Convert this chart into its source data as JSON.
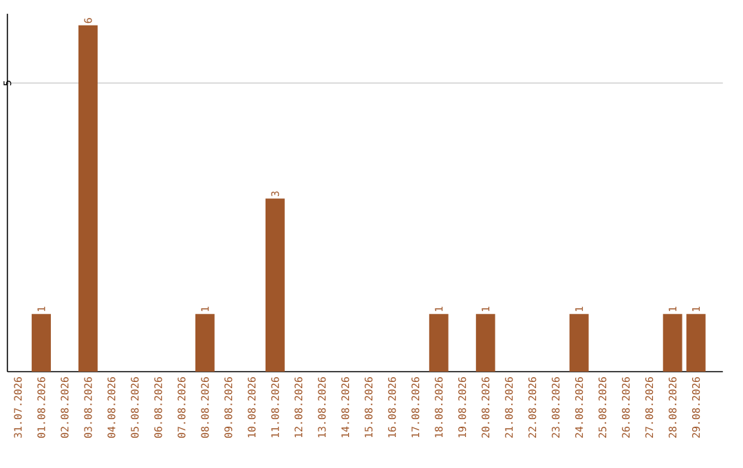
{
  "chart_data": {
    "type": "bar",
    "categories": [
      "31.07.2026",
      "01.08.2026",
      "02.08.2026",
      "03.08.2026",
      "04.08.2026",
      "05.08.2026",
      "06.08.2026",
      "07.08.2026",
      "08.08.2026",
      "09.08.2026",
      "10.08.2026",
      "11.08.2026",
      "12.08.2026",
      "13.08.2026",
      "14.08.2026",
      "15.08.2026",
      "16.08.2026",
      "17.08.2026",
      "18.08.2026",
      "19.08.2026",
      "20.08.2026",
      "21.08.2026",
      "22.08.2026",
      "23.08.2026",
      "24.08.2026",
      "25.08.2026",
      "26.08.2026",
      "27.08.2026",
      "28.08.2026",
      "29.08.2026"
    ],
    "values": [
      0,
      1,
      0,
      6,
      0,
      0,
      0,
      0,
      1,
      0,
      0,
      3,
      0,
      0,
      0,
      0,
      0,
      0,
      1,
      0,
      1,
      0,
      0,
      0,
      1,
      0,
      0,
      0,
      1,
      1
    ],
    "value_labels": [
      null,
      "1",
      null,
      "6",
      null,
      null,
      null,
      null,
      "1",
      null,
      null,
      "3",
      null,
      null,
      null,
      null,
      null,
      null,
      "1",
      null,
      "1",
      null,
      null,
      null,
      "1",
      null,
      null,
      null,
      "1",
      "1"
    ],
    "color": "#a0572a",
    "ylim": [
      0,
      6.2
    ],
    "yticks": [
      5
    ],
    "grid": "y"
  }
}
